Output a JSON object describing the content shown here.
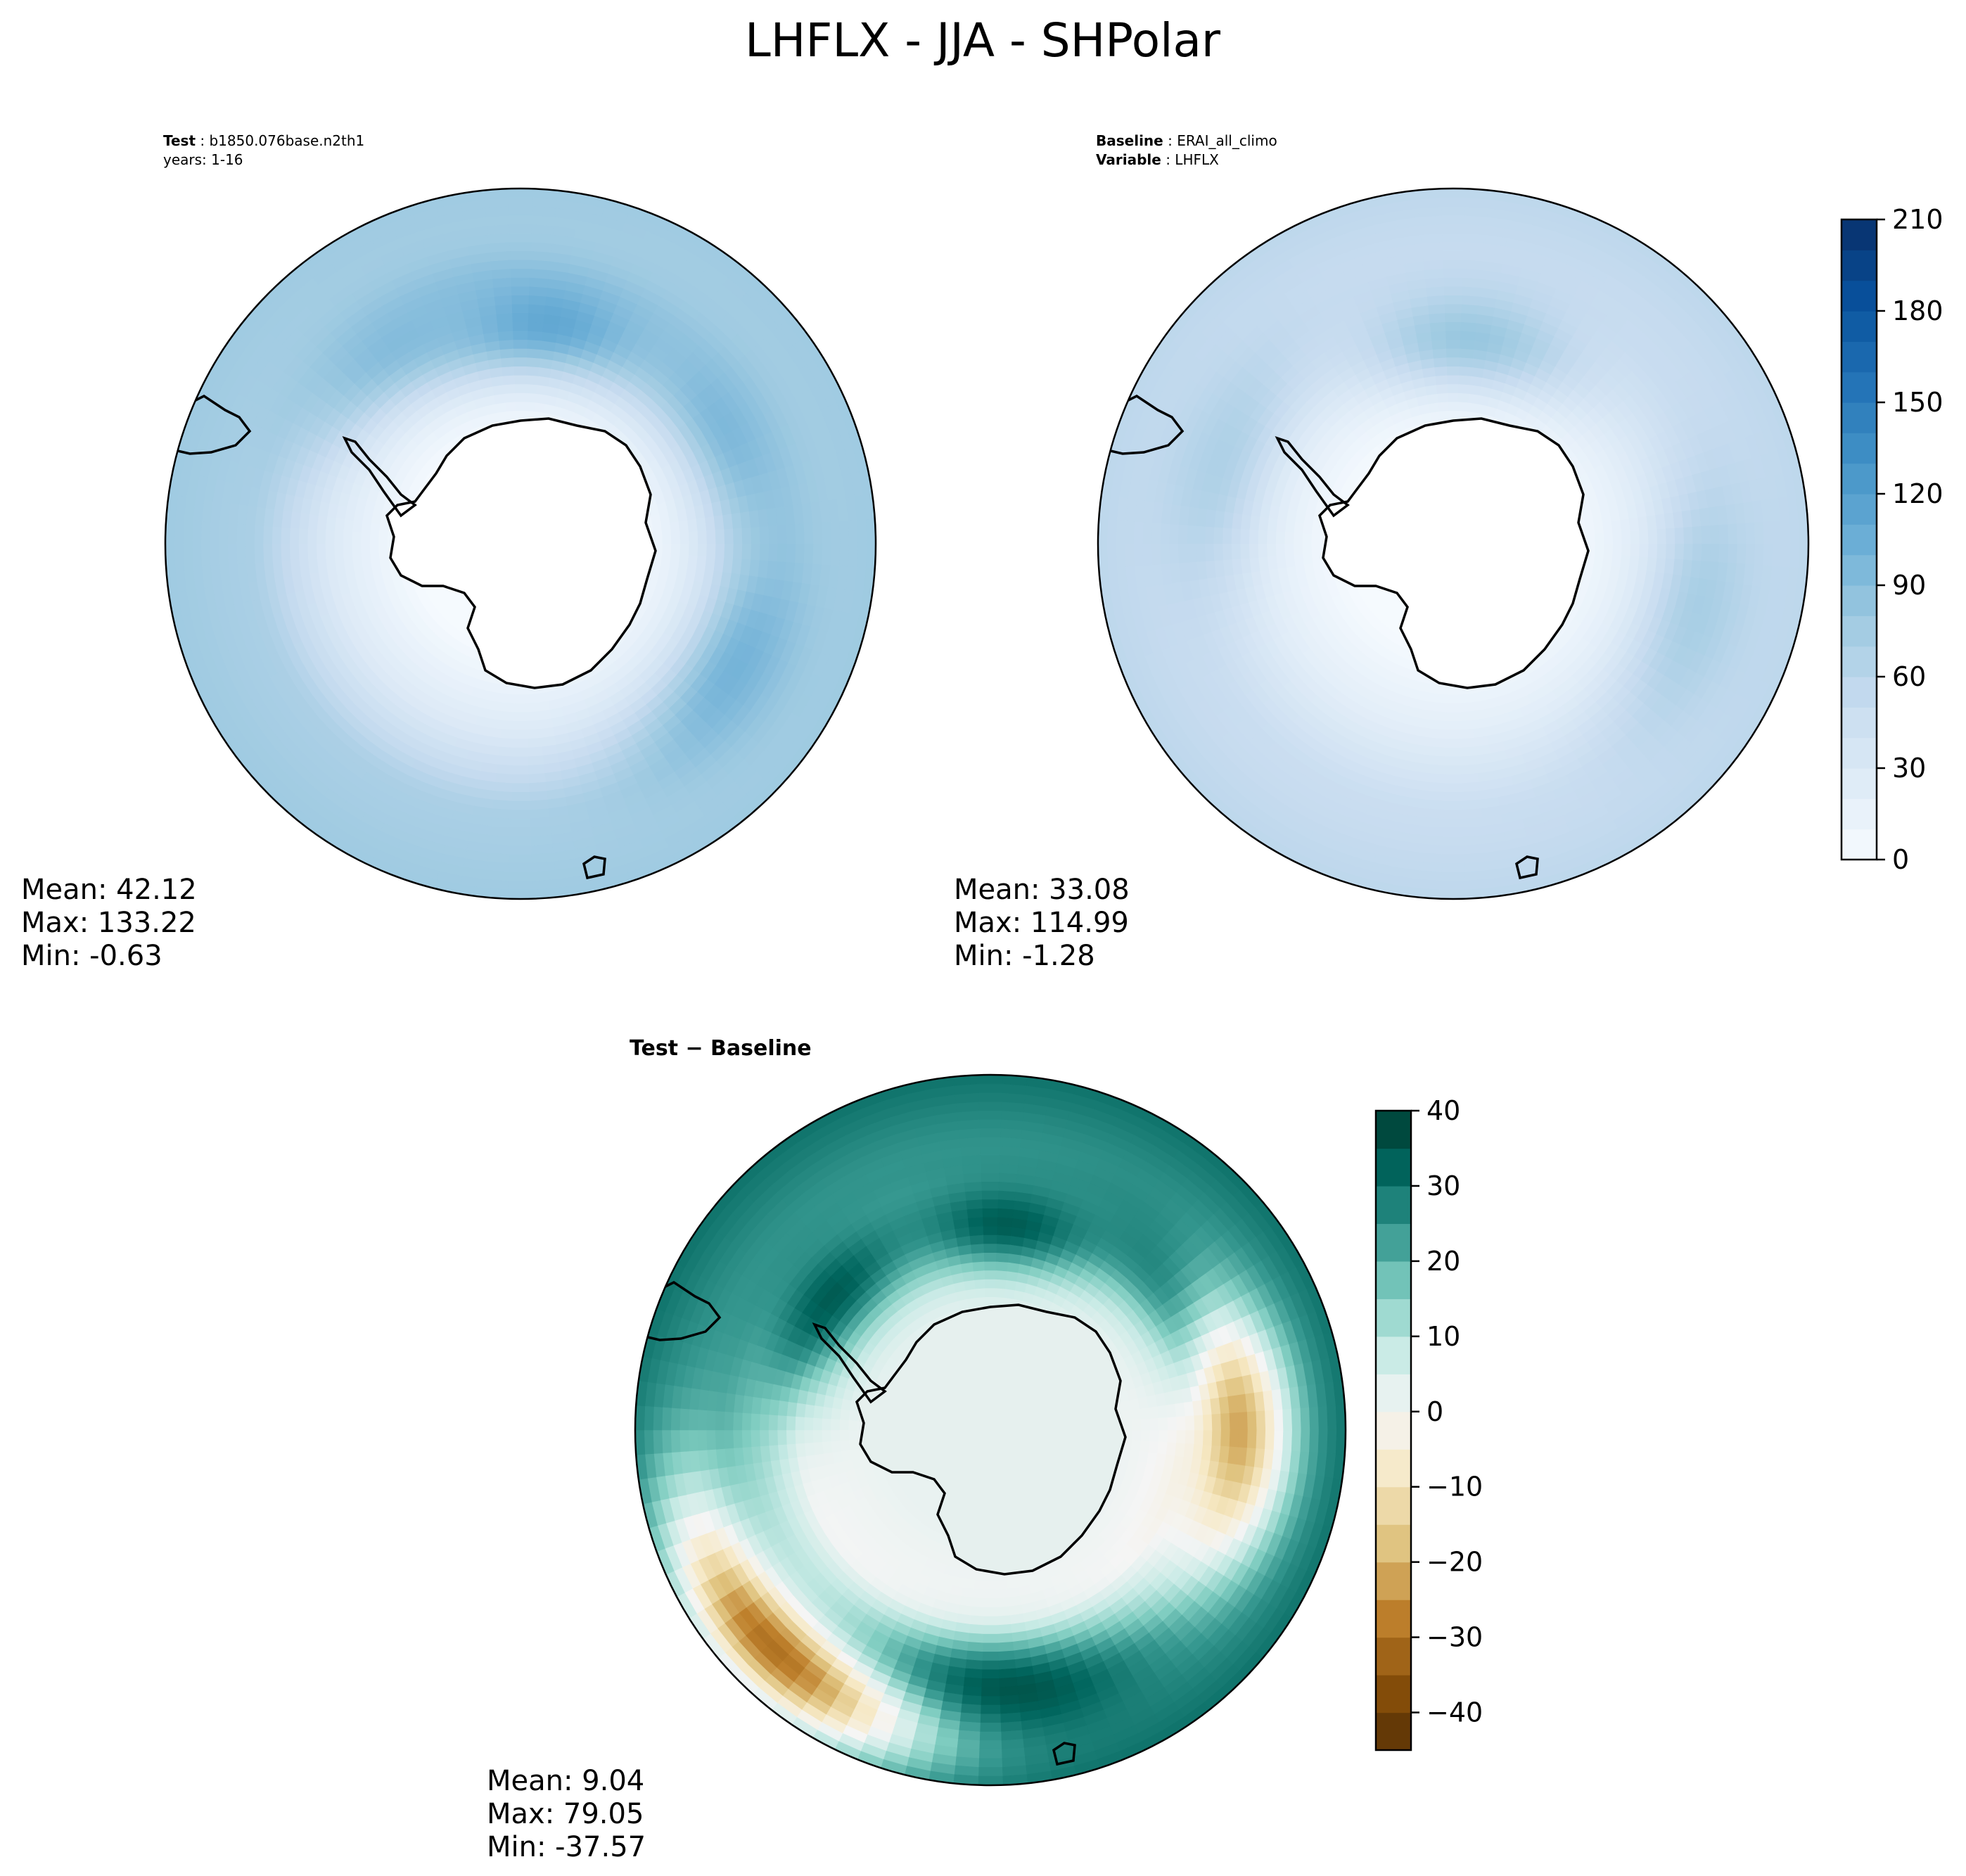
{
  "title": "LHFLX - JJA - SHPolar",
  "chart_data": [
    {
      "type": "heatmap",
      "projection": "south-polar-stereographic",
      "panel": "test",
      "header": [
        {
          "key": "Test",
          "value": "b1850.076base.n2th1"
        },
        {
          "key": "",
          "value": "years: 1-16"
        }
      ],
      "colormap": "Blues",
      "levels": [
        0,
        210
      ],
      "stats": {
        "mean": "Mean: 42.12",
        "max": "Max: 133.22",
        "min": "Min: -0.63"
      },
      "field": {
        "continent": 2,
        "inner_ring": 28,
        "mid_ocean": 70,
        "outer_ocean": 78,
        "hotspots": [
          {
            "lon": 95,
            "lat": -52,
            "value": 118
          },
          {
            "lon": -150,
            "lat": -48,
            "value": 100
          },
          {
            "lon": 150,
            "lat": -50,
            "value": 95
          },
          {
            "lon": 60,
            "lat": -50,
            "value": 92
          }
        ]
      }
    },
    {
      "type": "heatmap",
      "projection": "south-polar-stereographic",
      "panel": "baseline",
      "header": [
        {
          "key": "Baseline",
          "value": "ERAI_all_climo"
        },
        {
          "key": "Variable",
          "value": "LHFLX"
        }
      ],
      "colormap": "Blues",
      "levels": [
        0,
        210
      ],
      "colorbar": {
        "ticks": [
          "0",
          "30",
          "60",
          "90",
          "120",
          "150",
          "180",
          "210"
        ],
        "min": 0,
        "max": 210,
        "step": 10
      },
      "stats": {
        "mean": "Mean: 33.08",
        "max": "Max: 114.99",
        "min": "Min: -1.28"
      },
      "field": {
        "continent": 2,
        "inner_ring": 22,
        "mid_ocean": 48,
        "outer_ocean": 58,
        "hotspots": [
          {
            "lon": 95,
            "lat": -55,
            "value": 82
          },
          {
            "lon": -165,
            "lat": -47,
            "value": 72
          },
          {
            "lon": 20,
            "lat": -48,
            "value": 68
          }
        ]
      }
    },
    {
      "type": "heatmap",
      "projection": "south-polar-stereographic",
      "panel": "difference",
      "header_title": "Test − Baseline",
      "colormap": "BrBG",
      "levels": [
        -45,
        40
      ],
      "colorbar": {
        "ticks": [
          "40",
          "30",
          "20",
          "10",
          "0",
          "−10",
          "−20",
          "−30",
          "−40"
        ],
        "min": -45,
        "max": 40,
        "step": 5
      },
      "stats": {
        "mean": "Mean:  9.04",
        "max": "Max: 79.05",
        "min": "Min: -37.57"
      },
      "field": {
        "continent": 2,
        "inner_ring": 0,
        "mid_ocean": 22,
        "outer_ocean": 30,
        "hotspots": [
          {
            "lon": -90,
            "lat": -45,
            "value": 38
          },
          {
            "lon": 150,
            "lat": -50,
            "value": 36
          },
          {
            "lon": 40,
            "lat": -55,
            "value": 34
          },
          {
            "lon": 180,
            "lat": -48,
            "value": -22
          },
          {
            "lon": -45,
            "lat": -38,
            "value": -30
          },
          {
            "lon": 95,
            "lat": -55,
            "value": 34
          }
        ]
      }
    }
  ]
}
